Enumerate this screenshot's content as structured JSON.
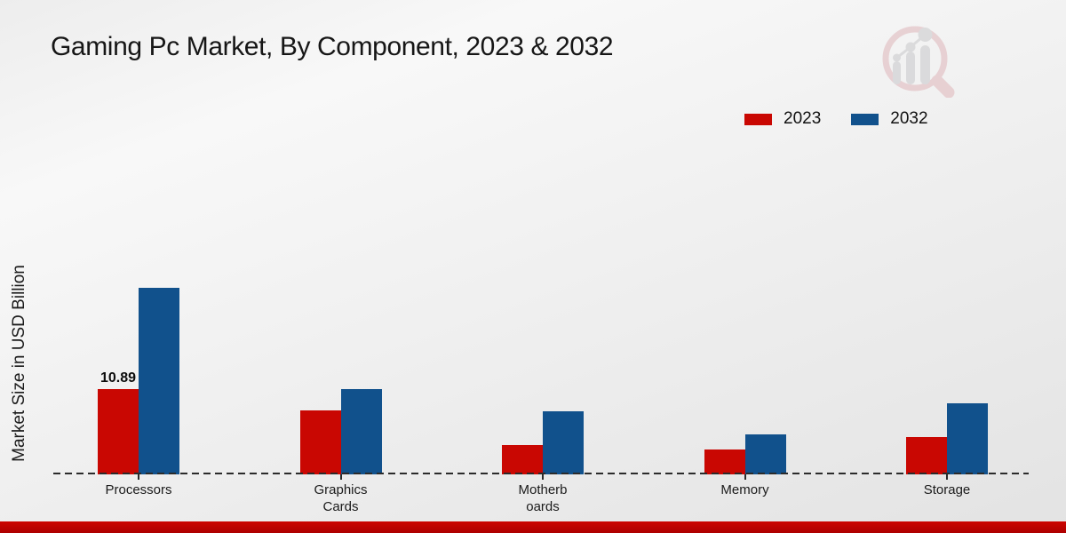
{
  "title": "Gaming Pc Market, By Component, 2023 & 2032",
  "ylabel": "Market Size in USD Billion",
  "legend": [
    {
      "label": "2023",
      "color": "#c90702"
    },
    {
      "label": "2032",
      "color": "#11518c"
    }
  ],
  "chart_data": {
    "type": "bar",
    "title": "Gaming Pc Market, By Component, 2023 & 2032",
    "ylabel": "Market Size in USD Billion",
    "xlabel": "",
    "categories": [
      "Processors",
      "Graphics Cards",
      "Motherboards",
      "Memory",
      "Storage"
    ],
    "category_label_lines": [
      [
        "Processors"
      ],
      [
        "Graphics",
        "Cards"
      ],
      [
        "Motherb",
        "oards"
      ],
      [
        "Memory"
      ],
      [
        "Storage"
      ]
    ],
    "series": [
      {
        "name": "2023",
        "color": "#c90702",
        "values": [
          10.89,
          8.2,
          3.7,
          3.2,
          4.8
        ]
      },
      {
        "name": "2032",
        "color": "#11518c",
        "values": [
          23.8,
          10.9,
          8.1,
          5.1,
          9.1
        ]
      }
    ],
    "annotations": [
      {
        "series": "2023",
        "category": "Processors",
        "text": "10.89"
      }
    ],
    "ylim": [
      0,
      25
    ],
    "grid": false,
    "axis_style": "dashed-baseline",
    "legend_position": "top-right"
  },
  "branding": {
    "logo_icon": "magnifier-bar-chart-watermark",
    "footer_color": "#c00000"
  }
}
